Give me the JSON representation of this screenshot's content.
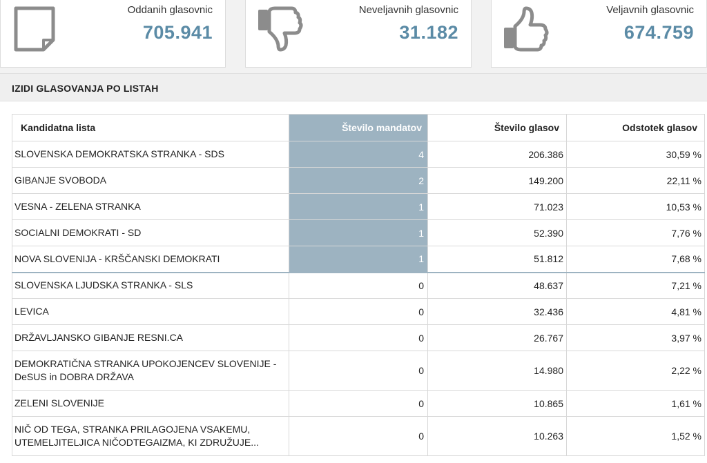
{
  "stats": {
    "cast": {
      "label": "Oddanih glasovnic",
      "value": "705.941",
      "icon": "ballot-paper-icon"
    },
    "invalid": {
      "label": "Neveljavnih glasovnic",
      "value": "31.182",
      "icon": "thumbs-down-icon"
    },
    "valid": {
      "label": "Veljavnih glasovnic",
      "value": "674.759",
      "icon": "thumbs-up-icon"
    }
  },
  "section": {
    "title": "IZIDI GLASOVANJA PO LISTAH"
  },
  "table": {
    "headers": [
      "Kandidatna lista",
      "Število mandatov",
      "Število glasov",
      "Odstotek glasov"
    ],
    "rows": [
      {
        "name": "SLOVENSKA DEMOKRATSKA STRANKA - SDS",
        "seats": "4",
        "votes": "206.386",
        "pct": "30,59 %"
      },
      {
        "name": "GIBANJE SVOBODA",
        "seats": "2",
        "votes": "149.200",
        "pct": "22,11 %"
      },
      {
        "name": "VESNA - ZELENA STRANKA",
        "seats": "1",
        "votes": "71.023",
        "pct": "10,53 %"
      },
      {
        "name": "SOCIALNI DEMOKRATI - SD",
        "seats": "1",
        "votes": "52.390",
        "pct": "7,76 %"
      },
      {
        "name": "NOVA SLOVENIJA - KRŠČANSKI DEMOKRATI",
        "seats": "1",
        "votes": "51.812",
        "pct": "7,68 %"
      },
      {
        "name": "SLOVENSKA LJUDSKA STRANKA - SLS",
        "seats": "0",
        "votes": "48.637",
        "pct": "7,21 %"
      },
      {
        "name": "LEVICA",
        "seats": "0",
        "votes": "32.436",
        "pct": "4,81 %"
      },
      {
        "name": "DRŽAVLJANSKO GIBANJE RESNI.CA",
        "seats": "0",
        "votes": "26.767",
        "pct": "3,97 %"
      },
      {
        "name": "DEMOKRATIČNA STRANKA UPOKOJENCEV SLOVENIJE - DeSUS in DOBRA DRŽAVA",
        "seats": "0",
        "votes": "14.980",
        "pct": "2,22 %"
      },
      {
        "name": "ZELENI SLOVENIJE",
        "seats": "0",
        "votes": "10.865",
        "pct": "1,61 %"
      },
      {
        "name": "NIČ OD TEGA, STRANKA PRILAGOJENA VSAKEMU, UTEMELJITELJICA NIČODTEGAIZMA, KI ZDRUŽUJE...",
        "seats": "0",
        "votes": "10.263",
        "pct": "1,52 %"
      }
    ]
  },
  "colors": {
    "accent": "#5b8ba6",
    "highlight": "#9db3c1",
    "icon": "#8c8c8c"
  }
}
